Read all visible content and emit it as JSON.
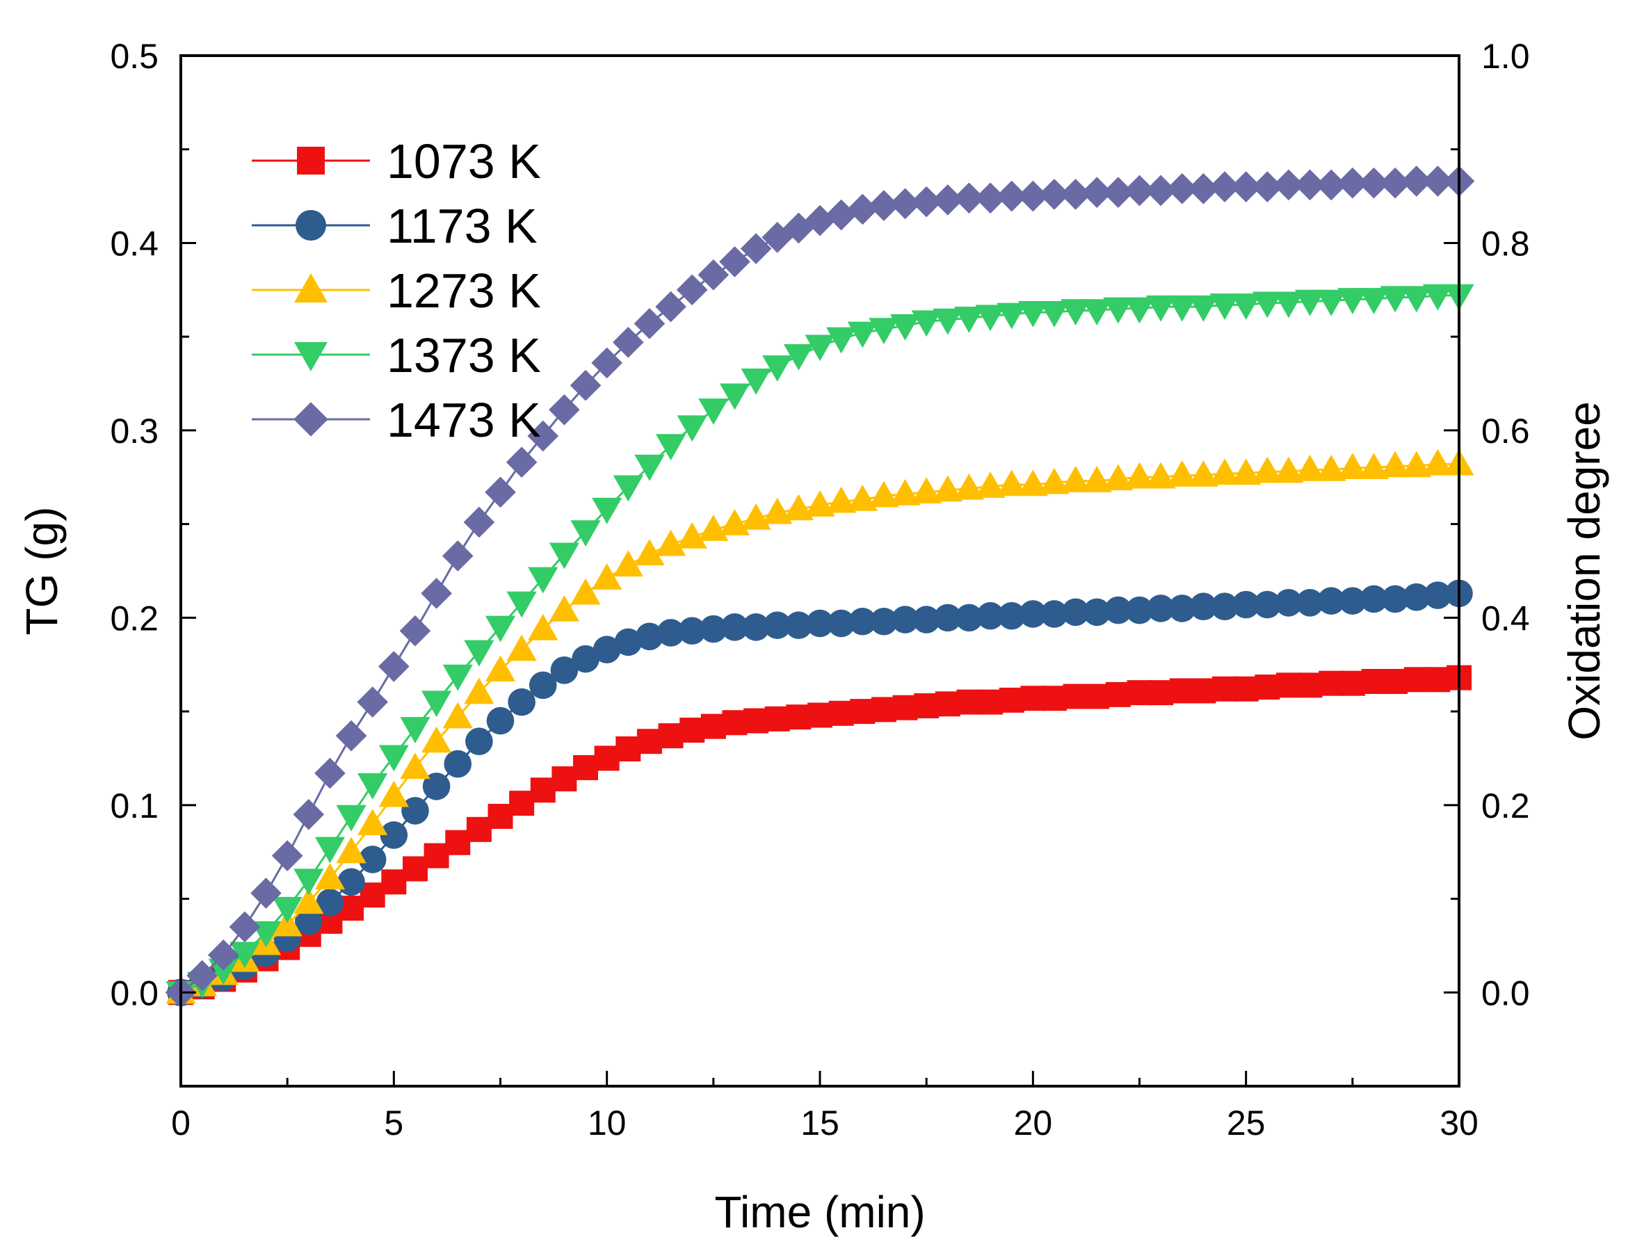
{
  "chart_data": {
    "type": "line",
    "title": "",
    "xlabel": "Time (min)",
    "ylabel": "TG (g)",
    "y2label": "Oxidation degree",
    "xlim": [
      0,
      30
    ],
    "ylim": [
      -0.05,
      0.5
    ],
    "y2lim": [
      -0.1,
      1.0
    ],
    "grid": false,
    "legend_position": "top-left",
    "x_ticks": [
      "0",
      "5",
      "10",
      "15",
      "20",
      "25",
      "30"
    ],
    "y_ticks": [
      "0.0",
      "0.1",
      "0.2",
      "0.3",
      "0.4",
      "0.5"
    ],
    "y2_ticks": [
      "0.0",
      "0.2",
      "0.4",
      "0.6",
      "0.8",
      "1.0"
    ],
    "x_step": 0.5,
    "series": [
      {
        "name": "1073 K",
        "marker": "square",
        "color": "#ee1111",
        "values": [
          0.0,
          0.003,
          0.007,
          0.012,
          0.018,
          0.024,
          0.031,
          0.038,
          0.045,
          0.052,
          0.059,
          0.066,
          0.073,
          0.08,
          0.087,
          0.094,
          0.101,
          0.108,
          0.114,
          0.12,
          0.125,
          0.13,
          0.134,
          0.137,
          0.14,
          0.142,
          0.144,
          0.145,
          0.146,
          0.147,
          0.148,
          0.149,
          0.15,
          0.151,
          0.152,
          0.153,
          0.154,
          0.155,
          0.155,
          0.156,
          0.157,
          0.157,
          0.158,
          0.158,
          0.159,
          0.16,
          0.16,
          0.161,
          0.161,
          0.162,
          0.162,
          0.163,
          0.164,
          0.164,
          0.165,
          0.165,
          0.166,
          0.166,
          0.167,
          0.167,
          0.168
        ]
      },
      {
        "name": "1173 K",
        "marker": "circle",
        "color": "#2e5c8f",
        "values": [
          0.0,
          0.004,
          0.008,
          0.014,
          0.021,
          0.029,
          0.038,
          0.048,
          0.059,
          0.071,
          0.084,
          0.097,
          0.11,
          0.122,
          0.134,
          0.145,
          0.155,
          0.164,
          0.172,
          0.178,
          0.183,
          0.187,
          0.19,
          0.192,
          0.193,
          0.194,
          0.195,
          0.195,
          0.196,
          0.196,
          0.197,
          0.197,
          0.198,
          0.198,
          0.199,
          0.199,
          0.2,
          0.2,
          0.201,
          0.201,
          0.202,
          0.202,
          0.203,
          0.203,
          0.204,
          0.204,
          0.205,
          0.205,
          0.206,
          0.206,
          0.207,
          0.207,
          0.208,
          0.208,
          0.209,
          0.209,
          0.21,
          0.21,
          0.211,
          0.212,
          0.213
        ]
      },
      {
        "name": "1273 K",
        "marker": "triangle-up",
        "color": "#ffbf00",
        "values": [
          0.0,
          0.004,
          0.01,
          0.017,
          0.026,
          0.036,
          0.048,
          0.061,
          0.075,
          0.09,
          0.105,
          0.12,
          0.134,
          0.147,
          0.16,
          0.172,
          0.183,
          0.194,
          0.204,
          0.213,
          0.221,
          0.228,
          0.234,
          0.239,
          0.243,
          0.247,
          0.25,
          0.253,
          0.256,
          0.258,
          0.26,
          0.262,
          0.263,
          0.265,
          0.266,
          0.267,
          0.268,
          0.269,
          0.27,
          0.271,
          0.271,
          0.272,
          0.273,
          0.273,
          0.274,
          0.275,
          0.275,
          0.276,
          0.276,
          0.277,
          0.277,
          0.278,
          0.278,
          0.279,
          0.279,
          0.28,
          0.28,
          0.281,
          0.281,
          0.282,
          0.282
        ]
      },
      {
        "name": "1373 K",
        "marker": "triangle-down",
        "color": "#33cc66",
        "values": [
          0.0,
          0.005,
          0.012,
          0.021,
          0.032,
          0.045,
          0.06,
          0.077,
          0.094,
          0.111,
          0.126,
          0.141,
          0.155,
          0.169,
          0.182,
          0.195,
          0.208,
          0.221,
          0.234,
          0.246,
          0.258,
          0.27,
          0.281,
          0.292,
          0.302,
          0.311,
          0.319,
          0.327,
          0.334,
          0.34,
          0.345,
          0.349,
          0.352,
          0.354,
          0.356,
          0.358,
          0.359,
          0.36,
          0.361,
          0.362,
          0.363,
          0.363,
          0.364,
          0.364,
          0.365,
          0.365,
          0.366,
          0.366,
          0.366,
          0.367,
          0.367,
          0.368,
          0.368,
          0.369,
          0.369,
          0.37,
          0.37,
          0.371,
          0.371,
          0.372,
          0.372
        ]
      },
      {
        "name": "1473 K",
        "marker": "diamond",
        "color": "#6a6aa5",
        "values": [
          0.0,
          0.009,
          0.02,
          0.035,
          0.053,
          0.073,
          0.095,
          0.117,
          0.137,
          0.155,
          0.174,
          0.193,
          0.213,
          0.233,
          0.251,
          0.267,
          0.283,
          0.297,
          0.311,
          0.324,
          0.336,
          0.347,
          0.357,
          0.366,
          0.375,
          0.383,
          0.39,
          0.397,
          0.403,
          0.408,
          0.412,
          0.415,
          0.418,
          0.42,
          0.421,
          0.422,
          0.423,
          0.424,
          0.424,
          0.425,
          0.425,
          0.426,
          0.426,
          0.427,
          0.427,
          0.428,
          0.428,
          0.429,
          0.429,
          0.43,
          0.43,
          0.43,
          0.431,
          0.431,
          0.431,
          0.432,
          0.432,
          0.432,
          0.433,
          0.433,
          0.433
        ]
      }
    ]
  }
}
